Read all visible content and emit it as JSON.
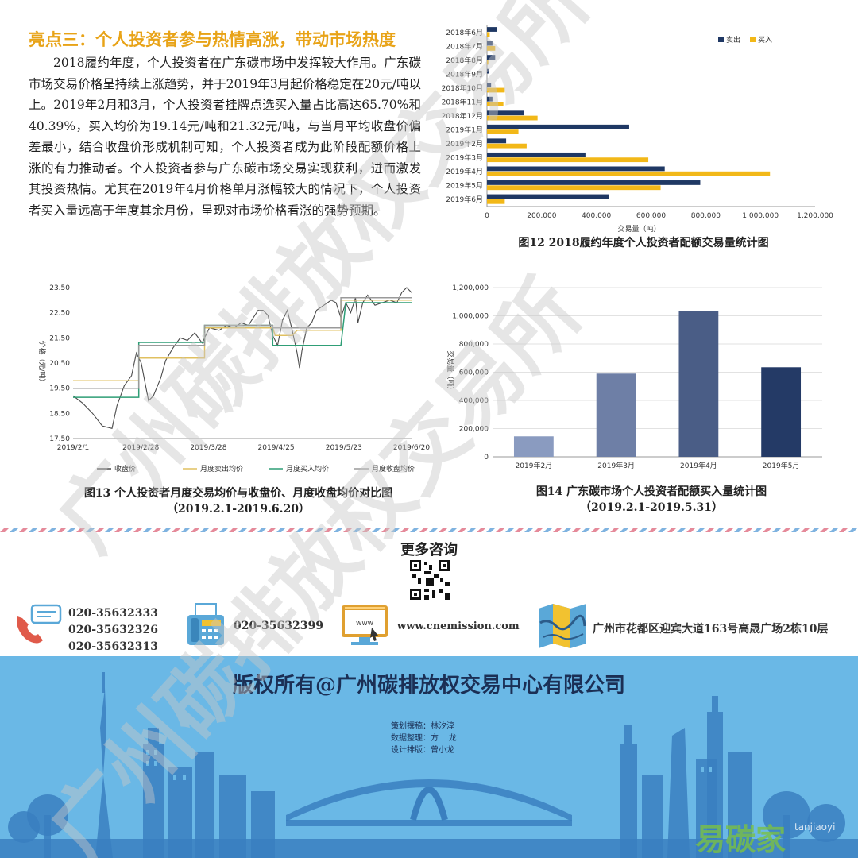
{
  "article": {
    "title": "亮点三：个人投资者参与热情高涨，带动市场热度",
    "paragraph": "2018履约年度，个人投资者在广东碳市场中发挥较大作用。广东碳市场交易价格呈持续上涨趋势，并于2019年3月起价格稳定在20元/吨以上。2019年2月和3月，个人投资者挂牌点选买入量占比高达65.70%和40.39%，买入均价为19.14元/吨和21.32元/吨，与当月平均收盘价偏差最小，结合收盘价形成机制可知，个人投资者成为此阶段配额价格上涨的有力推动者。个人投资者参与广东碳市场交易实现获利，进而激发其投资热情。尤其在2019年4月价格单月涨幅较大的情况下，个人投资者买入量远高于年度其余月份，呈现对市场价格看涨的强势预期。"
  },
  "colors": {
    "title_gold": "#e8a317",
    "sell_navy": "#1f3864",
    "buy_gold": "#f2b818",
    "footer_blue": "#6ab8e6"
  },
  "fig12": {
    "caption": "图12  2018履约年度个人投资者配额交易量统计图",
    "chart_data": {
      "type": "bar",
      "orientation": "horizontal",
      "categories": [
        "2018年6月",
        "2018年7月",
        "2018年8月",
        "2018年9月",
        "2018年10月",
        "2018年11月",
        "2018年12月",
        "2019年1月",
        "2019年2月",
        "2019年3月",
        "2019年4月",
        "2019年5月",
        "2019年6月"
      ],
      "series": [
        {
          "name": "卖出",
          "color": "#1f3864",
          "values": [
            35000,
            20000,
            30000,
            8000,
            15000,
            20000,
            135000,
            520000,
            70000,
            360000,
            650000,
            780000,
            445000
          ]
        },
        {
          "name": "买入",
          "color": "#f2b818",
          "values": [
            10000,
            30000,
            5000,
            0,
            65000,
            60000,
            185000,
            115000,
            145000,
            590000,
            1035000,
            635000,
            65000
          ]
        }
      ],
      "xlabel": "交易量（吨）",
      "xlim": [
        0,
        1200000
      ],
      "xticks": [
        "0",
        "200,000",
        "400,000",
        "600,000",
        "800,000",
        "1,000,000",
        "1,200,000"
      ],
      "legend": "top-right"
    }
  },
  "fig13": {
    "caption_line1": "图13  个人投资者月度交易均价与收盘价、月度收盘均价对比图",
    "caption_line2": "（2019.2.1-2019.6.20）",
    "chart_data": {
      "type": "line",
      "ylabel": "价格（元/吨）",
      "ylim": [
        17.5,
        23.5
      ],
      "yticks": [
        "17.50",
        "18.50",
        "19.50",
        "20.50",
        "21.50",
        "22.50",
        "23.50"
      ],
      "xticks": [
        "2019/2/1",
        "2019/2/28",
        "2019/3/28",
        "2019/4/25",
        "2019/5/23",
        "2019/6/20"
      ],
      "xlim": [
        0,
        139
      ],
      "series": [
        {
          "name": "收盘价",
          "color": "#4a4a4a",
          "points": [
            [
              0,
              19.2
            ],
            [
              4,
              18.9
            ],
            [
              8,
              18.5
            ],
            [
              12,
              18.0
            ],
            [
              16,
              17.9
            ],
            [
              18,
              18.8
            ],
            [
              21,
              19.6
            ],
            [
              24,
              20.0
            ],
            [
              26,
              20.9
            ],
            [
              28,
              20.5
            ],
            [
              30,
              19.5
            ],
            [
              31,
              19.0
            ],
            [
              33,
              19.2
            ],
            [
              36,
              19.9
            ],
            [
              38,
              20.6
            ],
            [
              41,
              21.1
            ],
            [
              44,
              21.5
            ],
            [
              47,
              21.4
            ],
            [
              50,
              21.7
            ],
            [
              53,
              21.3
            ],
            [
              56,
              21.9
            ],
            [
              60,
              21.8
            ],
            [
              63,
              22.0
            ],
            [
              66,
              21.9
            ],
            [
              69,
              22.1
            ],
            [
              72,
              22.0
            ],
            [
              74,
              22.3
            ],
            [
              76,
              22.6
            ],
            [
              78,
              22.6
            ],
            [
              80,
              22.4
            ],
            [
              82,
              21.6
            ],
            [
              84,
              21.2
            ],
            [
              86,
              22.2
            ],
            [
              88,
              22.6
            ],
            [
              90,
              21.8
            ],
            [
              92,
              20.9
            ],
            [
              93,
              20.3
            ],
            [
              94,
              21.0
            ],
            [
              96,
              21.9
            ],
            [
              98,
              22.1
            ],
            [
              100,
              22.6
            ],
            [
              103,
              22.8
            ],
            [
              106,
              23.0
            ],
            [
              108,
              22.9
            ],
            [
              110,
              22.3
            ],
            [
              112,
              22.9
            ],
            [
              114,
              22.5
            ],
            [
              116,
              23.1
            ],
            [
              117,
              22.1
            ],
            [
              119,
              22.9
            ],
            [
              121,
              23.2
            ],
            [
              124,
              22.8
            ],
            [
              127,
              22.9
            ],
            [
              130,
              23.0
            ],
            [
              133,
              22.9
            ],
            [
              135,
              23.3
            ],
            [
              137,
              23.5
            ],
            [
              139,
              23.3
            ]
          ]
        },
        {
          "name": "月度卖出均价",
          "color": "#e0c060",
          "points": [
            [
              0,
              19.8
            ],
            [
              27,
              19.8
            ],
            [
              27,
              20.7
            ],
            [
              54,
              20.7
            ],
            [
              54,
              21.9
            ],
            [
              82,
              21.9
            ],
            [
              83,
              21.6
            ],
            [
              90,
              21.6
            ],
            [
              92,
              21.8
            ],
            [
              110,
              21.8
            ],
            [
              110,
              23.0
            ],
            [
              139,
              23.0
            ]
          ]
        },
        {
          "name": "月度买入均价",
          "color": "#2f9e76",
          "points": [
            [
              0,
              19.14
            ],
            [
              27,
              19.14
            ],
            [
              27,
              21.32
            ],
            [
              54,
              21.32
            ],
            [
              54,
              22.0
            ],
            [
              82,
              22.0
            ],
            [
              82,
              21.2
            ],
            [
              110,
              21.2
            ],
            [
              112,
              22.9
            ],
            [
              139,
              22.9
            ]
          ]
        },
        {
          "name": "月度收盘均价",
          "color": "#9a9a9a",
          "points": [
            [
              0,
              19.5
            ],
            [
              27,
              19.5
            ],
            [
              27,
              21.2
            ],
            [
              54,
              21.2
            ],
            [
              54,
              22.0
            ],
            [
              82,
              22.0
            ],
            [
              82,
              21.9
            ],
            [
              110,
              21.9
            ],
            [
              110,
              23.1
            ],
            [
              139,
              23.1
            ]
          ]
        }
      ],
      "legend": "bottom"
    }
  },
  "fig14": {
    "caption_line1": "图14  广东碳市场个人投资者配额买入量统计图",
    "caption_line2": "（2019.2.1-2019.5.31）",
    "chart_data": {
      "type": "bar",
      "categories": [
        "2019年2月",
        "2019年3月",
        "2019年4月",
        "2019年5月"
      ],
      "values": [
        145000,
        590000,
        1035000,
        635000
      ],
      "colors": [
        "#8a9bc0",
        "#6e7fa6",
        "#4a5d86",
        "#243a66"
      ],
      "ylabel": "交易量（吨）",
      "ylim": [
        0,
        1200000
      ],
      "yticks": [
        "0",
        "200,000",
        "400,000",
        "600,000",
        "800,000",
        "1,000,000",
        "1,200,000"
      ],
      "grid": true
    }
  },
  "contact": {
    "more_title": "更多咨询",
    "phones": [
      "020-35632333",
      "020-35632326",
      "020-35632313"
    ],
    "fax": "020-35632399",
    "website": "www.cnemission.com",
    "address": "广州市花都区迎宾大道163号高晟广场2栋10层"
  },
  "footer": {
    "copyright": "版权所有@广州碳排放权交易中心有限公司",
    "credits": [
      "策划撰稿：林汐淳",
      "数据整理：方    龙",
      "设计排版：曾小龙"
    ]
  },
  "watermark": {
    "text": "广州碳排放权交易所",
    "logo_text": "易碳家",
    "logo_sub": "tanjiaoyi"
  }
}
